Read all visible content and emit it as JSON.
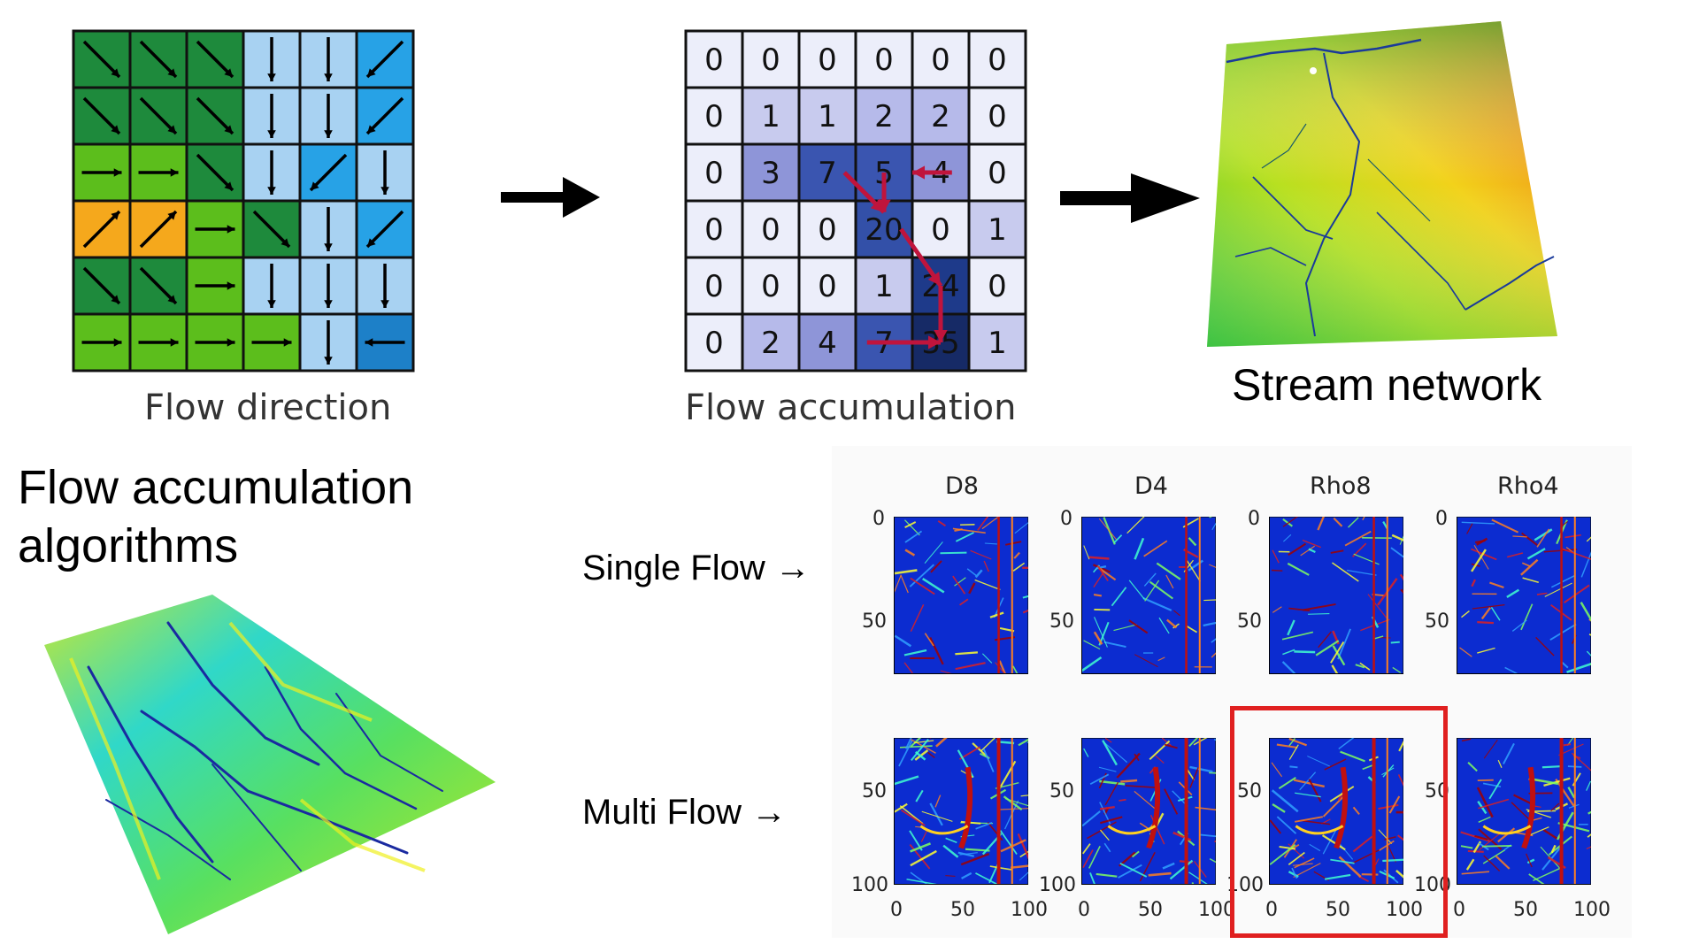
{
  "top_row": {
    "flow_direction": {
      "caption": "Flow direction",
      "cells": [
        [
          "se",
          "se",
          "se",
          "s",
          "s",
          "sw"
        ],
        [
          "se",
          "se",
          "se",
          "s",
          "s",
          "sw"
        ],
        [
          "e",
          "e",
          "se",
          "s",
          "sw",
          "s"
        ],
        [
          "ne",
          "ne",
          "e",
          "se",
          "s",
          "sw"
        ],
        [
          "se",
          "se",
          "e",
          "s",
          "s",
          "s"
        ],
        [
          "e",
          "e",
          "e",
          "e",
          "s",
          "w"
        ]
      ],
      "colors": [
        "dark-green",
        "dark-green",
        "dark-green",
        "light-blue",
        "light-blue",
        "blue"
      ],
      "palette": {
        "dark-green": "#1e8a3c",
        "green": "#5cbe1c",
        "orange": "#f5a81c",
        "light-blue": "#a8d2f2",
        "blue": "#27a2e6",
        "dark-blue": "#1d80c8"
      }
    },
    "flow_accumulation": {
      "caption": "Flow accumulation",
      "values": [
        [
          0,
          0,
          0,
          0,
          0,
          0
        ],
        [
          0,
          1,
          1,
          2,
          2,
          0
        ],
        [
          0,
          3,
          7,
          5,
          4,
          0
        ],
        [
          0,
          0,
          0,
          20,
          0,
          1
        ],
        [
          0,
          0,
          0,
          1,
          24,
          0
        ],
        [
          0,
          2,
          4,
          7,
          35,
          1
        ]
      ],
      "arrow_color": "#c0143c"
    },
    "stream_network": {
      "caption": "Stream network"
    }
  },
  "section": {
    "title_line1": "Flow accumulation",
    "title_line2": "algorithms"
  },
  "comparison": {
    "row_labels": {
      "single": "Single Flow →",
      "multi": "Multi Flow →"
    },
    "panels": [
      "D8",
      "D4",
      "Rho8",
      "Rho4"
    ],
    "single_yticks": [
      "0",
      "50"
    ],
    "multi_yticks": [
      "50",
      "100"
    ],
    "xticks": [
      "0",
      "50",
      "100"
    ],
    "highlight_color": "#e02020"
  }
}
